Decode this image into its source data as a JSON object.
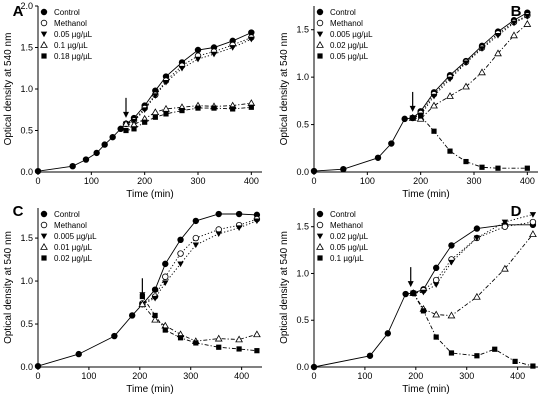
{
  "chart_data": [
    {
      "type": "line",
      "panel": "A",
      "xlabel": "Time (min)",
      "ylabel": "Optical density at 540 nm",
      "xlim": [
        0,
        420
      ],
      "ylim": [
        0,
        2.0
      ],
      "xticks": [
        0,
        100,
        200,
        300,
        400
      ],
      "yticks": [
        0.0,
        0.5,
        1.0,
        1.5,
        2.0
      ],
      "ytick_labels": [
        "0.0",
        "0.5",
        "1.0",
        "1.5",
        "2.0"
      ],
      "arrow_x": 165,
      "series": [
        {
          "name": "Control",
          "marker": "filled-circle",
          "style": "solid",
          "x": [
            0,
            65,
            90,
            110,
            125,
            140,
            155,
            165,
            180,
            200,
            220,
            240,
            270,
            300,
            330,
            365,
            400
          ],
          "y": [
            0.01,
            0.07,
            0.15,
            0.23,
            0.33,
            0.42,
            0.52,
            0.58,
            0.65,
            0.8,
            0.98,
            1.15,
            1.32,
            1.47,
            1.5,
            1.58,
            1.68
          ]
        },
        {
          "name": "Methanol",
          "marker": "open-circle",
          "style": "dotted",
          "x": [
            165,
            180,
            200,
            220,
            240,
            270,
            300,
            330,
            365,
            400
          ],
          "y": [
            0.58,
            0.62,
            0.77,
            0.93,
            1.1,
            1.28,
            1.4,
            1.45,
            1.53,
            1.62
          ]
        },
        {
          "name": "0.05 µg/µL",
          "marker": "filled-triangle-down",
          "style": "dotted",
          "x": [
            165,
            180,
            200,
            220,
            240,
            270,
            300,
            330,
            365,
            400
          ],
          "y": [
            0.58,
            0.61,
            0.75,
            0.92,
            1.08,
            1.25,
            1.36,
            1.42,
            1.5,
            1.6
          ]
        },
        {
          "name": "0.1 µg/µL",
          "marker": "open-triangle-up",
          "style": "dashdot",
          "x": [
            165,
            180,
            200,
            220,
            240,
            270,
            300,
            330,
            365,
            400
          ],
          "y": [
            0.58,
            0.57,
            0.64,
            0.72,
            0.76,
            0.78,
            0.8,
            0.79,
            0.8,
            0.83
          ]
        },
        {
          "name": "0.18 µg/µL",
          "marker": "filled-square",
          "style": "dashdot",
          "x": [
            165,
            180,
            200,
            220,
            240,
            270,
            300,
            330,
            365,
            400
          ],
          "y": [
            0.5,
            0.52,
            0.6,
            0.66,
            0.7,
            0.74,
            0.77,
            0.77,
            0.76,
            0.78
          ]
        }
      ]
    },
    {
      "type": "line",
      "panel": "B",
      "xlabel": "Time (min)",
      "ylabel": "Optical density at 540 nm",
      "xlim": [
        0,
        420
      ],
      "ylim": [
        0,
        1.75
      ],
      "xticks": [
        0,
        100,
        200,
        300,
        400
      ],
      "yticks": [
        0.0,
        0.5,
        1.0,
        1.5
      ],
      "ytick_labels": [
        "0.0",
        "0.5",
        "1.0",
        "1.5"
      ],
      "arrow_x": 185,
      "series": [
        {
          "name": "Control",
          "marker": "filled-circle",
          "style": "solid",
          "x": [
            0,
            55,
            120,
            145,
            170,
            185,
            200,
            225,
            255,
            285,
            315,
            345,
            375,
            400
          ],
          "y": [
            0.01,
            0.03,
            0.15,
            0.3,
            0.56,
            0.57,
            0.64,
            0.84,
            1.02,
            1.17,
            1.33,
            1.48,
            1.6,
            1.68
          ]
        },
        {
          "name": "Methanol",
          "marker": "open-circle",
          "style": "dotted",
          "x": [
            185,
            200,
            225,
            255,
            285,
            315,
            345,
            375,
            400
          ],
          "y": [
            0.57,
            0.62,
            0.82,
            1.0,
            1.16,
            1.31,
            1.46,
            1.58,
            1.65
          ]
        },
        {
          "name": "0.005 µg/µL",
          "marker": "filled-triangle-down",
          "style": "dotted",
          "x": [
            185,
            200,
            225,
            255,
            285,
            315,
            345,
            375,
            400
          ],
          "y": [
            0.57,
            0.6,
            0.8,
            0.98,
            1.15,
            1.3,
            1.44,
            1.57,
            1.64
          ]
        },
        {
          "name": "0.02 µg/µL",
          "marker": "open-triangle-up",
          "style": "dashdot",
          "x": [
            185,
            200,
            225,
            255,
            285,
            315,
            345,
            375,
            400
          ],
          "y": [
            0.57,
            0.56,
            0.7,
            0.8,
            0.9,
            1.05,
            1.25,
            1.44,
            1.56
          ]
        },
        {
          "name": "0.05 µg/µL",
          "marker": "filled-square",
          "style": "dashdot",
          "x": [
            185,
            200,
            225,
            255,
            285,
            315,
            345,
            400
          ],
          "y": [
            0.57,
            0.59,
            0.43,
            0.22,
            0.11,
            0.05,
            0.04,
            0.04
          ]
        }
      ]
    },
    {
      "type": "line",
      "panel": "C",
      "xlabel": "Time (min)",
      "ylabel": "Optical density at 540 nm",
      "xlim": [
        0,
        440
      ],
      "ylim": [
        0,
        1.85
      ],
      "xticks": [
        0,
        100,
        200,
        300,
        400
      ],
      "yticks": [
        0.0,
        0.5,
        1.0,
        1.5
      ],
      "ytick_labels": [
        "0.0",
        "0.5",
        "1.0",
        "1.5"
      ],
      "arrow_x": 205,
      "series": [
        {
          "name": "Control",
          "marker": "filled-circle",
          "style": "solid",
          "x": [
            0,
            80,
            150,
            185,
            205,
            230,
            250,
            280,
            310,
            355,
            395,
            430
          ],
          "y": [
            0.01,
            0.15,
            0.36,
            0.6,
            0.73,
            0.9,
            1.2,
            1.48,
            1.7,
            1.78,
            1.78,
            1.77
          ]
        },
        {
          "name": "Methanol",
          "marker": "open-circle",
          "style": "dotted",
          "x": [
            205,
            230,
            250,
            280,
            310,
            355,
            395,
            430
          ],
          "y": [
            0.74,
            0.82,
            1.05,
            1.32,
            1.5,
            1.6,
            1.65,
            1.72
          ]
        },
        {
          "name": "0.005 µg/µL",
          "marker": "filled-triangle-down",
          "style": "dotted",
          "x": [
            205,
            230,
            250,
            280,
            310,
            355,
            395,
            430
          ],
          "y": [
            0.73,
            0.8,
            0.98,
            1.2,
            1.42,
            1.55,
            1.62,
            1.7
          ]
        },
        {
          "name": "0.01 µg/µL",
          "marker": "open-triangle-up",
          "style": "dashdot",
          "x": [
            205,
            230,
            250,
            280,
            310,
            355,
            395,
            430
          ],
          "y": [
            0.73,
            0.55,
            0.48,
            0.38,
            0.3,
            0.33,
            0.32,
            0.38
          ]
        },
        {
          "name": "0.02 µg/µL",
          "marker": "filled-square",
          "style": "dashdot",
          "x": [
            205,
            230,
            250,
            280,
            310,
            355,
            395,
            430
          ],
          "y": [
            0.82,
            0.6,
            0.43,
            0.34,
            0.28,
            0.23,
            0.21,
            0.19
          ]
        }
      ]
    },
    {
      "type": "line",
      "panel": "D",
      "xlabel": "Time (min)",
      "ylabel": "Optical density at 540 nm",
      "xlim": [
        0,
        440
      ],
      "ylim": [
        0,
        1.7
      ],
      "xticks": [
        0,
        100,
        200,
        300,
        400
      ],
      "yticks": [
        0.0,
        0.5,
        1.0,
        1.5
      ],
      "ytick_labels": [
        "0.0",
        "0.5",
        "1.0",
        "1.5"
      ],
      "arrow_x": 190,
      "series": [
        {
          "name": "Control",
          "marker": "filled-circle",
          "style": "solid",
          "x": [
            0,
            110,
            145,
            180,
            195,
            215,
            240,
            270,
            320,
            375,
            430
          ],
          "y": [
            0.0,
            0.12,
            0.36,
            0.78,
            0.79,
            0.83,
            1.06,
            1.3,
            1.48,
            1.52,
            1.52
          ]
        },
        {
          "name": "Methanol",
          "marker": "open-circle",
          "style": "dotted",
          "x": [
            195,
            215,
            240,
            270,
            320,
            375,
            430
          ],
          "y": [
            0.79,
            0.82,
            0.93,
            1.15,
            1.38,
            1.5,
            1.55
          ]
        },
        {
          "name": "0.02 µg/µL",
          "marker": "filled-triangle-down",
          "style": "dotted",
          "x": [
            195,
            215,
            240,
            270,
            320,
            375,
            430
          ],
          "y": [
            0.79,
            0.8,
            0.88,
            1.12,
            1.38,
            1.55,
            1.63
          ]
        },
        {
          "name": "0.05 µg/µL",
          "marker": "open-triangle-up",
          "style": "dashdot",
          "x": [
            195,
            215,
            240,
            270,
            320,
            375,
            430
          ],
          "y": [
            0.79,
            0.62,
            0.56,
            0.55,
            0.75,
            1.05,
            1.42
          ]
        },
        {
          "name": "0.1 µg/µL",
          "marker": "filled-square",
          "style": "dashdot",
          "x": [
            195,
            215,
            240,
            270,
            320,
            355,
            395,
            430
          ],
          "y": [
            0.79,
            0.6,
            0.32,
            0.15,
            0.12,
            0.19,
            0.06,
            0.01
          ]
        }
      ]
    }
  ]
}
